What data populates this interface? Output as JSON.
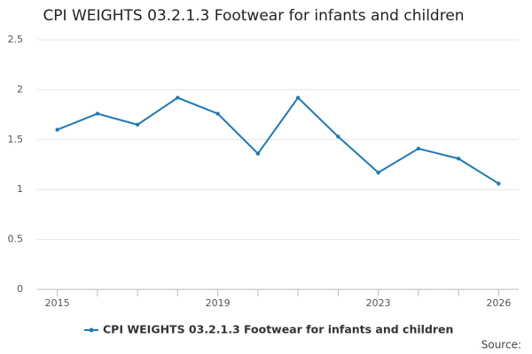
{
  "chart_data": {
    "type": "line",
    "title": "CPI WEIGHTS 03.2.1.3 Footwear for infants and children",
    "x": [
      2015,
      2016,
      2017,
      2018,
      2019,
      2020,
      2021,
      2022,
      2023,
      2024,
      2025,
      2026
    ],
    "series": [
      {
        "name": "CPI WEIGHTS 03.2.1.3 Footwear for infants and children",
        "color": "#1f7ab8",
        "values": [
          1.6,
          1.76,
          1.65,
          1.92,
          1.76,
          1.36,
          1.92,
          1.53,
          1.17,
          1.41,
          1.31,
          1.06
        ]
      }
    ],
    "xlim": [
      2014.5,
      2026.5
    ],
    "xticks": [
      2015,
      2019,
      2023,
      2026
    ],
    "ylim": [
      0,
      2.5
    ],
    "yticks": [
      0,
      0.5,
      1,
      1.5,
      2,
      2.5
    ],
    "grid": true,
    "source": "Source:"
  }
}
